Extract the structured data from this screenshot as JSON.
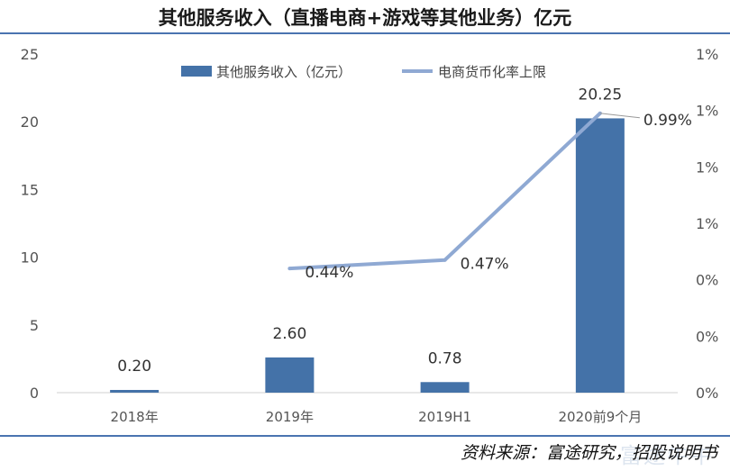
{
  "title": "其他服务收入（直播电商+游戏等其他业务）亿元",
  "source": "资料来源：富途研究，招股说明书",
  "watermark": "富途牛牛",
  "colors": {
    "bar": "#4472a8",
    "line": "#8fa9d3",
    "rule": "#4a74b0"
  },
  "chart_data": {
    "type": "bar",
    "categories": [
      "2018年",
      "2019年",
      "2019H1",
      "2020前9个月"
    ],
    "series": [
      {
        "name": "其他服务收入（亿元）",
        "type": "bar",
        "axis": "left",
        "values": [
          0.2,
          2.6,
          0.78,
          20.25
        ],
        "labels": [
          "0.20",
          "2.60",
          "0.78",
          "20.25"
        ]
      },
      {
        "name": "电商货币化率上限",
        "type": "line",
        "axis": "right",
        "values": [
          null,
          0.44,
          0.47,
          0.99
        ],
        "labels": [
          "",
          "0.44%",
          "0.47%",
          "0.99%"
        ]
      }
    ],
    "ylim": [
      0,
      25
    ],
    "yticks": [
      "0",
      "5",
      "10",
      "15",
      "20",
      "25"
    ],
    "y2ticks": [
      "0%",
      "0%",
      "0%",
      "1%",
      "1%",
      "1%",
      "1%"
    ],
    "legend": "top"
  }
}
